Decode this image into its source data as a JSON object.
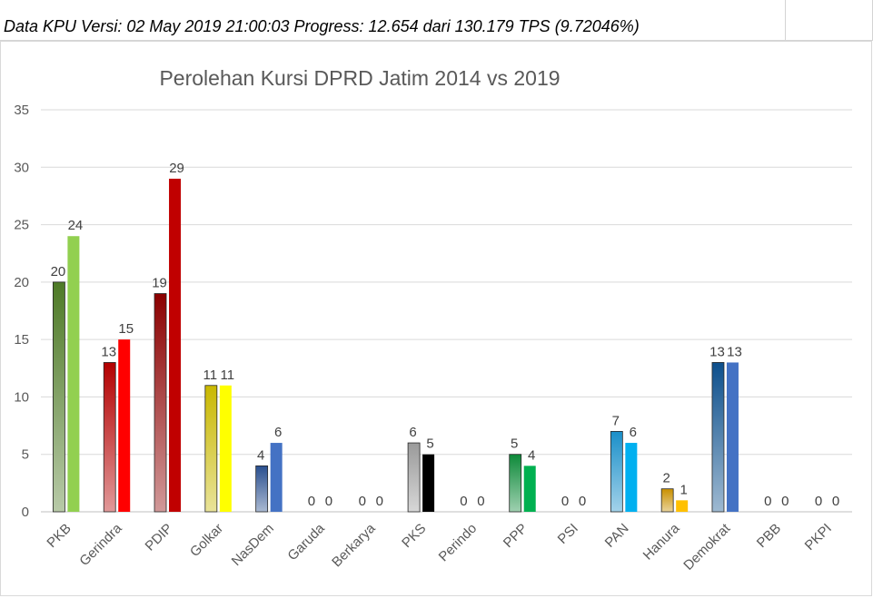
{
  "header": {
    "version_text": "Data KPU Versi: 02 May 2019 21:00:03 Progress: 12.654 dari 130.179 TPS (9.72046%)"
  },
  "chart_data": {
    "type": "bar",
    "title": "Perolehan Kursi DPRD Jatim 2014 vs 2019",
    "xlabel": "",
    "ylabel": "",
    "ylim": [
      0,
      35
    ],
    "yticks": [
      0,
      5,
      10,
      15,
      20,
      25,
      30,
      35
    ],
    "grid": true,
    "legend": "none",
    "categories": [
      "PKB",
      "Gerindra",
      "PDIP",
      "Golkar",
      "NasDem",
      "Garuda",
      "Berkarya",
      "PKS",
      "Perindo",
      "PPP",
      "PSI",
      "PAN",
      "Hanura",
      "Demokrat",
      "PBB",
      "PKPI"
    ],
    "series": [
      {
        "values": [
          20,
          13,
          19,
          11,
          4,
          0,
          0,
          6,
          0,
          5,
          0,
          7,
          2,
          13,
          0,
          0
        ]
      },
      {
        "values": [
          24,
          15,
          29,
          11,
          6,
          0,
          0,
          5,
          0,
          4,
          0,
          6,
          1,
          13,
          0,
          0
        ]
      }
    ],
    "colors": {
      "2014": [
        "#4e7a26",
        "#b30000",
        "#8b0000",
        "#c9b800",
        "#2a4f8f",
        "#777777",
        "#777777",
        "#9a9a9a",
        "#777777",
        "#0e8a3a",
        "#777777",
        "#1a8fc9",
        "#c99000",
        "#0d4f8c",
        "#777777",
        "#777777"
      ],
      "2019": [
        "#92d050",
        "#ff0000",
        "#c00000",
        "#ffff00",
        "#4472c4",
        "#777777",
        "#777777",
        "#000000",
        "#777777",
        "#00b050",
        "#777777",
        "#00b0f0",
        "#ffc000",
        "#4472c4",
        "#777777",
        "#777777"
      ]
    }
  }
}
